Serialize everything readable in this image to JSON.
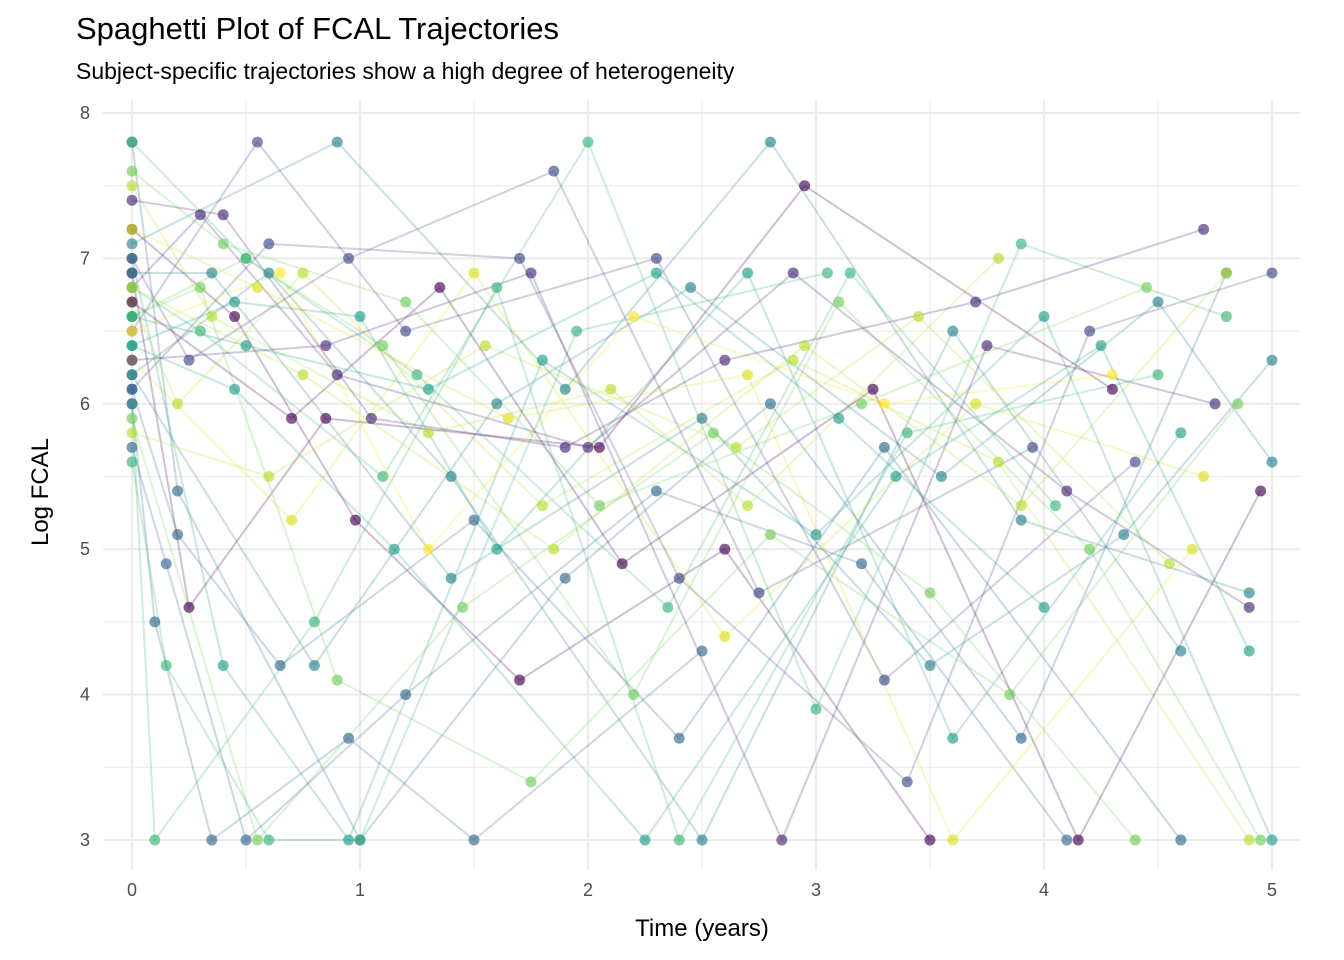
{
  "chart_data": {
    "type": "line",
    "title": "Spaghetti Plot of FCAL Trajectories",
    "subtitle": "Subject-specific trajectories show a high degree of heterogeneity",
    "xlabel": "Time (years)",
    "ylabel": "Log FCAL",
    "xlim": [
      -0.1,
      5.1
    ],
    "ylim": [
      2.8,
      8.05
    ],
    "xticks": [
      "0",
      "1",
      "2",
      "3",
      "4",
      "5"
    ],
    "yticks": [
      "3",
      "4",
      "5",
      "6",
      "7",
      "8"
    ],
    "grid": true,
    "legend": "none",
    "color_scale": "viridis",
    "series": [
      {
        "color": "#440154",
        "x": [
          0,
          0.45,
          0.98,
          1.7,
          2.6,
          3.5
        ],
        "y": [
          7.2,
          6.6,
          5.2,
          4.1,
          5.0,
          3.0
        ]
      },
      {
        "color": "#482878",
        "x": [
          0,
          0.3,
          0.9,
          2.0,
          2.9,
          4.1,
          4.9
        ],
        "y": [
          6.8,
          7.3,
          6.2,
          5.7,
          6.9,
          5.4,
          4.6
        ]
      },
      {
        "color": "#3e4a89",
        "x": [
          0,
          0.55,
          1.2,
          2.3,
          3.3,
          4.4
        ],
        "y": [
          6.5,
          7.8,
          6.5,
          7.0,
          4.1,
          5.6
        ]
      },
      {
        "color": "#31688e",
        "x": [
          0,
          0.2,
          1.0,
          1.9,
          2.8,
          3.9,
          4.8
        ],
        "y": [
          7.8,
          5.4,
          3.0,
          4.8,
          6.0,
          3.7,
          6.9
        ]
      },
      {
        "color": "#26828e",
        "x": [
          0,
          0.6,
          1.4,
          2.5,
          3.6,
          4.6
        ],
        "y": [
          6.2,
          6.9,
          5.5,
          3.0,
          6.5,
          4.3
        ]
      },
      {
        "color": "#1f9e89",
        "x": [
          0,
          0.4,
          0.95,
          1.8,
          3.0,
          4.0,
          5.0
        ],
        "y": [
          7.0,
          4.2,
          3.0,
          6.3,
          5.1,
          6.6,
          3.0
        ]
      },
      {
        "color": "#35b779",
        "x": [
          0,
          0.1,
          0.8,
          1.6,
          2.4,
          3.4,
          4.5
        ],
        "y": [
          6.0,
          3.0,
          4.5,
          6.8,
          3.0,
          5.8,
          6.2
        ]
      },
      {
        "color": "#6ece58",
        "x": [
          0,
          0.5,
          1.1,
          2.2,
          3.1,
          4.2,
          4.95
        ],
        "y": [
          6.6,
          7.0,
          6.4,
          4.0,
          6.7,
          5.0,
          3.0
        ]
      },
      {
        "color": "#b5de2b",
        "x": [
          0,
          0.35,
          1.3,
          2.1,
          2.7,
          3.8
        ],
        "y": [
          7.5,
          6.6,
          5.8,
          6.1,
          5.3,
          7.0
        ]
      },
      {
        "color": "#d8e219",
        "x": [
          0,
          0.7,
          1.5,
          2.6,
          3.7,
          4.7
        ],
        "y": [
          6.3,
          5.2,
          6.9,
          4.4,
          6.0,
          5.5
        ]
      },
      {
        "color": "#440154",
        "x": [
          0,
          0.25,
          0.85,
          2.05,
          2.95,
          4.3
        ],
        "y": [
          6.9,
          4.6,
          5.9,
          5.7,
          7.5,
          6.1
        ]
      },
      {
        "color": "#3e4a89",
        "x": [
          0,
          0.6,
          1.7,
          2.4,
          3.4,
          4.2,
          5.0
        ],
        "y": [
          6.1,
          7.1,
          7.0,
          4.8,
          3.4,
          6.5,
          6.9
        ]
      },
      {
        "color": "#31688e",
        "x": [
          0,
          0.15,
          0.5,
          1.2,
          2.3,
          3.2,
          4.1
        ],
        "y": [
          5.7,
          4.9,
          3.0,
          4.0,
          5.4,
          4.9,
          3.0
        ]
      },
      {
        "color": "#26828e",
        "x": [
          0,
          0.9,
          1.9,
          2.8,
          3.9,
          4.9
        ],
        "y": [
          7.1,
          7.8,
          6.1,
          7.8,
          5.2,
          4.7
        ]
      },
      {
        "color": "#1f9e89",
        "x": [
          0,
          0.45,
          1.0,
          1.6,
          2.7,
          3.6,
          4.6
        ],
        "y": [
          6.4,
          6.7,
          6.6,
          5.0,
          6.9,
          3.7,
          5.8
        ]
      },
      {
        "color": "#35b779",
        "x": [
          0,
          0.3,
          1.1,
          2.0,
          3.0,
          3.9,
          4.8
        ],
        "y": [
          6.8,
          6.5,
          5.5,
          7.8,
          3.9,
          7.1,
          6.6
        ]
      },
      {
        "color": "#6ece58",
        "x": [
          0,
          0.55,
          1.45,
          2.55,
          3.5,
          4.4
        ],
        "y": [
          5.9,
          3.0,
          4.6,
          5.8,
          4.7,
          3.0
        ]
      },
      {
        "color": "#b5de2b",
        "x": [
          0,
          0.2,
          0.75,
          1.8,
          2.9,
          3.8,
          4.9
        ],
        "y": [
          6.7,
          6.0,
          6.9,
          5.3,
          6.3,
          5.6,
          3.0
        ]
      },
      {
        "color": "#fde725",
        "x": [
          0,
          0.65,
          1.3,
          2.2,
          3.3,
          4.3
        ],
        "y": [
          6.5,
          6.9,
          5.0,
          6.6,
          6.0,
          6.2
        ]
      },
      {
        "color": "#482878",
        "x": [
          0,
          0.4,
          1.05,
          1.9,
          2.6,
          3.7,
          4.7
        ],
        "y": [
          7.4,
          7.3,
          5.9,
          5.7,
          6.3,
          6.7,
          7.2
        ]
      },
      {
        "color": "#31688e",
        "x": [
          0,
          0.1,
          0.35,
          0.95,
          1.5,
          2.5
        ],
        "y": [
          6.0,
          4.5,
          3.0,
          3.7,
          3.0,
          4.3
        ]
      },
      {
        "color": "#26828e",
        "x": [
          0,
          0.8,
          1.6,
          2.45,
          3.55,
          4.5,
          5.0
        ],
        "y": [
          6.2,
          4.2,
          6.0,
          6.8,
          5.5,
          6.7,
          5.6
        ]
      },
      {
        "color": "#35b779",
        "x": [
          0,
          0.5,
          1.25,
          2.35,
          3.15,
          4.05
        ],
        "y": [
          7.8,
          7.0,
          6.2,
          4.6,
          6.9,
          5.3
        ]
      },
      {
        "color": "#6ece58",
        "x": [
          0,
          0.3,
          0.9,
          1.75,
          2.8,
          3.85,
          4.85
        ],
        "y": [
          6.6,
          6.8,
          4.1,
          3.4,
          5.1,
          4.0,
          6.0
        ]
      },
      {
        "color": "#b5de2b",
        "x": [
          0,
          0.6,
          1.55,
          2.65,
          3.45,
          4.55
        ],
        "y": [
          5.8,
          5.5,
          6.4,
          5.7,
          6.6,
          4.9
        ]
      },
      {
        "color": "#440154",
        "x": [
          0,
          0.7,
          1.35,
          2.15,
          3.25,
          4.15,
          4.95
        ],
        "y": [
          6.7,
          5.9,
          6.8,
          4.9,
          6.1,
          3.0,
          5.4
        ]
      },
      {
        "color": "#3e4a89",
        "x": [
          0,
          0.25,
          0.95,
          1.85,
          2.75,
          3.95
        ],
        "y": [
          7.0,
          6.3,
          7.0,
          7.6,
          4.7,
          5.7
        ]
      },
      {
        "color": "#1f9e89",
        "x": [
          0,
          0.45,
          1.15,
          2.25,
          3.35,
          4.25,
          4.9
        ],
        "y": [
          6.4,
          6.1,
          5.0,
          3.0,
          5.5,
          6.4,
          4.3
        ]
      },
      {
        "color": "#35b779",
        "x": [
          0,
          0.15,
          0.6,
          1.0,
          1.95,
          3.05
        ],
        "y": [
          5.6,
          4.2,
          3.0,
          3.0,
          6.5,
          6.9
        ]
      },
      {
        "color": "#d8e219",
        "x": [
          0,
          0.55,
          1.65,
          2.7,
          3.6,
          4.65
        ],
        "y": [
          7.2,
          6.8,
          5.9,
          6.2,
          3.0,
          5.0
        ]
      },
      {
        "color": "#26828e",
        "x": [
          0,
          0.35,
          1.4,
          2.5,
          3.5,
          4.35,
          5.0
        ],
        "y": [
          6.9,
          6.9,
          4.8,
          5.9,
          4.2,
          5.1,
          6.3
        ]
      },
      {
        "color": "#482878",
        "x": [
          0,
          0.85,
          1.75,
          2.85,
          3.75,
          4.75
        ],
        "y": [
          6.3,
          6.4,
          6.9,
          3.0,
          6.4,
          6.0
        ]
      },
      {
        "color": "#6ece58",
        "x": [
          0,
          0.4,
          1.2,
          2.05,
          3.2,
          4.45
        ],
        "y": [
          7.6,
          7.1,
          6.7,
          5.3,
          6.0,
          6.8
        ]
      },
      {
        "color": "#31688e",
        "x": [
          0,
          0.2,
          0.65,
          1.5,
          2.4,
          3.3,
          4.6
        ],
        "y": [
          6.1,
          5.1,
          4.2,
          5.2,
          3.7,
          5.7,
          3.0
        ]
      },
      {
        "color": "#b5de2b",
        "x": [
          0,
          0.75,
          1.85,
          2.95,
          3.9,
          4.8
        ],
        "y": [
          6.8,
          6.2,
          5.0,
          6.4,
          5.3,
          6.9
        ]
      },
      {
        "color": "#1f9e89",
        "x": [
          0,
          0.5,
          1.3,
          2.3,
          3.1,
          4.0
        ],
        "y": [
          6.6,
          6.4,
          6.1,
          6.9,
          5.9,
          4.6
        ]
      }
    ]
  }
}
